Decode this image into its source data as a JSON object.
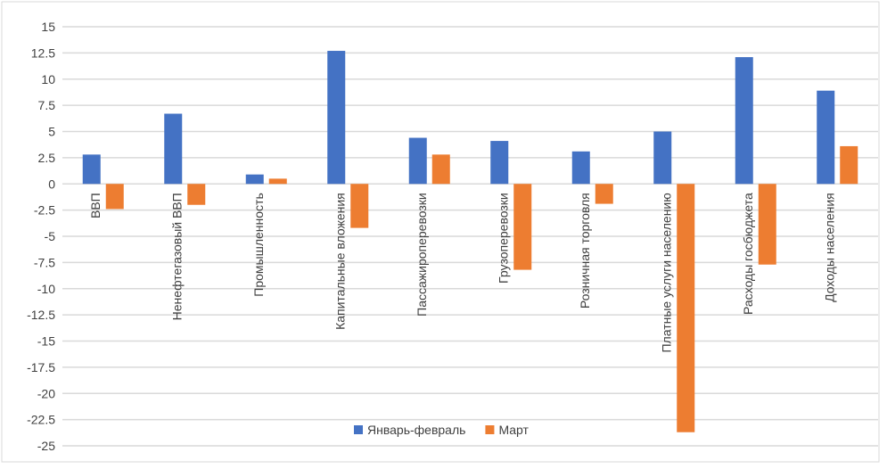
{
  "chart_data": {
    "type": "bar",
    "categories": [
      "ВВП",
      "Ненефтегазовый ВВП",
      "Промышленность",
      "Капитальные вложения",
      "Пассажироперевозки",
      "Грузоперевозки",
      "Розничная торговля",
      "Платные услуги населению",
      "Расходы госбюджета",
      "Доходы населения"
    ],
    "series": [
      {
        "name": "Январь-февраль",
        "color": "#4472C4",
        "values": [
          2.8,
          6.7,
          0.9,
          12.7,
          4.4,
          4.1,
          3.1,
          5.0,
          12.1,
          8.9
        ]
      },
      {
        "name": "Март",
        "color": "#ED7D31",
        "values": [
          -2.4,
          -2.0,
          0.5,
          -4.2,
          2.8,
          -8.2,
          -1.9,
          -23.7,
          -7.7,
          3.6
        ]
      }
    ],
    "ylim": [
      -25,
      15
    ],
    "yticks": [
      "15",
      "12.5",
      "10",
      "7.5",
      "5",
      "2.5",
      "0",
      "-2.5",
      "-5",
      "-7.5",
      "-10",
      "-12.5",
      "-15",
      "-17.5",
      "-20",
      "-22.5",
      "-25"
    ],
    "grid": true,
    "legend": "bottom-center"
  }
}
